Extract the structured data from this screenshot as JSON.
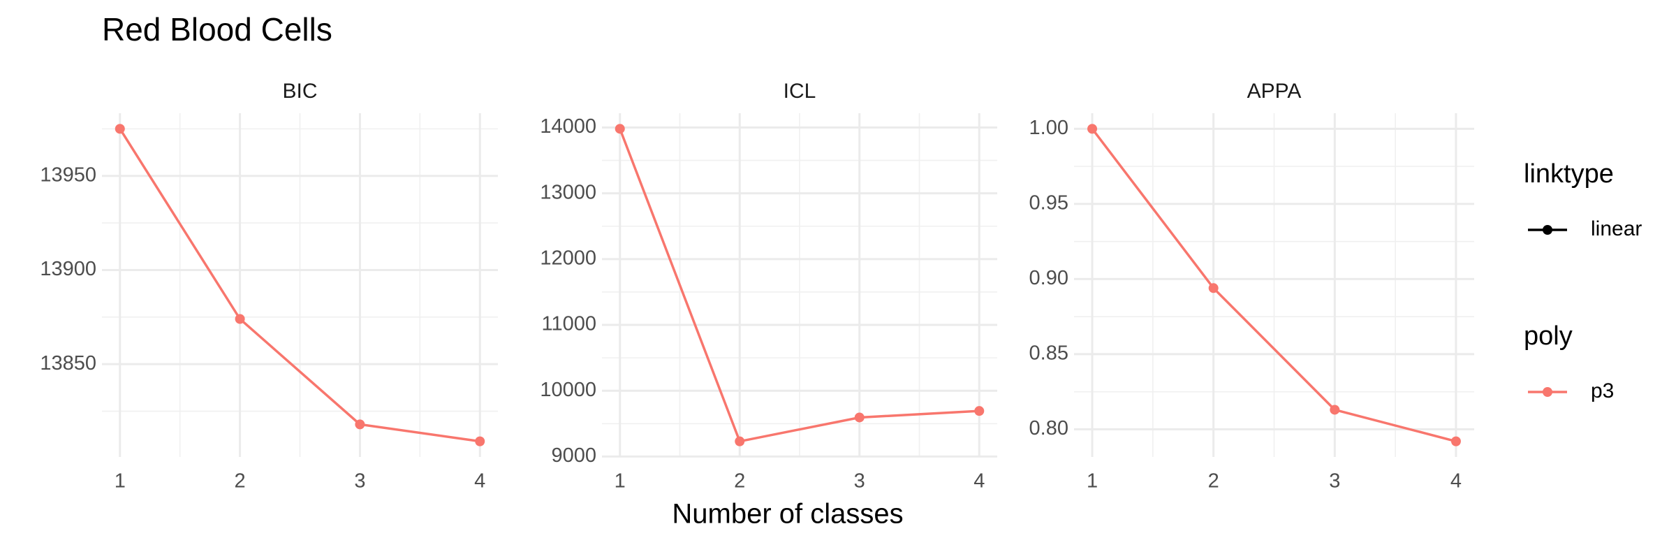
{
  "title": "Red Blood Cells",
  "x_label": "Number of classes",
  "legend": [
    {
      "title": "linktype",
      "items": [
        "linear"
      ],
      "color": "#000000"
    },
    {
      "title": "poly",
      "items": [
        "p3"
      ],
      "color": "#F8766D"
    }
  ],
  "grid": true,
  "chart_data": [
    {
      "type": "line",
      "title": "BIC",
      "x": [
        1,
        2,
        3,
        4
      ],
      "series": [
        {
          "name": "p3",
          "color": "#F8766D",
          "values": [
            13975,
            13874,
            13818,
            13809
          ]
        }
      ],
      "xlim": [
        0.85,
        4.15
      ],
      "xticks": [
        1,
        2,
        3,
        4
      ],
      "ylim": [
        13800.7,
        13983.3
      ],
      "yticks": [
        13850,
        13900,
        13950
      ]
    },
    {
      "type": "line",
      "title": "ICL",
      "x": [
        1,
        2,
        3,
        4
      ],
      "series": [
        {
          "name": "p3",
          "color": "#F8766D",
          "values": [
            13980,
            9231,
            9594,
            9693
          ]
        }
      ],
      "xlim": [
        0.85,
        4.15
      ],
      "xticks": [
        1,
        2,
        3,
        4
      ],
      "ylim": [
        8994,
        14217
      ],
      "yticks": [
        9000,
        10000,
        11000,
        12000,
        13000,
        14000
      ]
    },
    {
      "type": "line",
      "title": "APPA",
      "x": [
        1,
        2,
        3,
        4
      ],
      "series": [
        {
          "name": "p3",
          "color": "#F8766D",
          "values": [
            1.0,
            0.894,
            0.813,
            0.792
          ]
        }
      ],
      "xlim": [
        0.85,
        4.15
      ],
      "xticks": [
        1,
        2,
        3,
        4
      ],
      "ylim": [
        0.7816,
        1.0104
      ],
      "yticks": [
        {
          "value": 0.8,
          "label": "0.80"
        },
        {
          "value": 0.85,
          "label": "0.85"
        },
        {
          "value": 0.9,
          "label": "0.90"
        },
        {
          "value": 0.95,
          "label": "0.95"
        },
        {
          "value": 1.0,
          "label": "1.00"
        }
      ]
    }
  ]
}
